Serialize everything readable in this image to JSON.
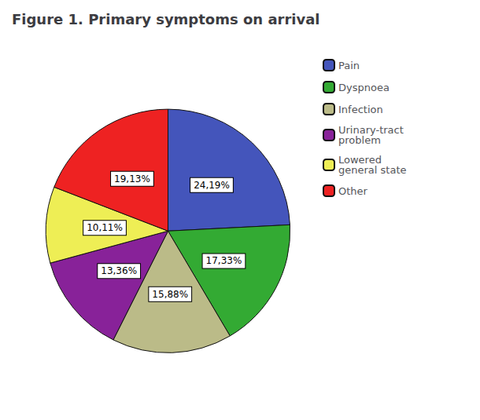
{
  "chart_data": {
    "type": "pie",
    "title": "Figure 1. Primary symptoms on arrival",
    "categories": [
      "Pain",
      "Dyspnoea",
      "Infection",
      "Urinary-tract\nproblem",
      "Lowered\ngeneral state",
      "Other"
    ],
    "values": [
      24.19,
      17.33,
      15.88,
      13.36,
      10.11,
      19.13
    ],
    "value_labels": [
      "24,19%",
      "17,33%",
      "15,88%",
      "13,36%",
      "10,11%",
      "19,13%"
    ],
    "colors": [
      "#4455bb",
      "#33aa33",
      "#bbbb88",
      "#882299",
      "#eeee55",
      "#ee2222"
    ],
    "data_labels": true,
    "legend": "right"
  }
}
